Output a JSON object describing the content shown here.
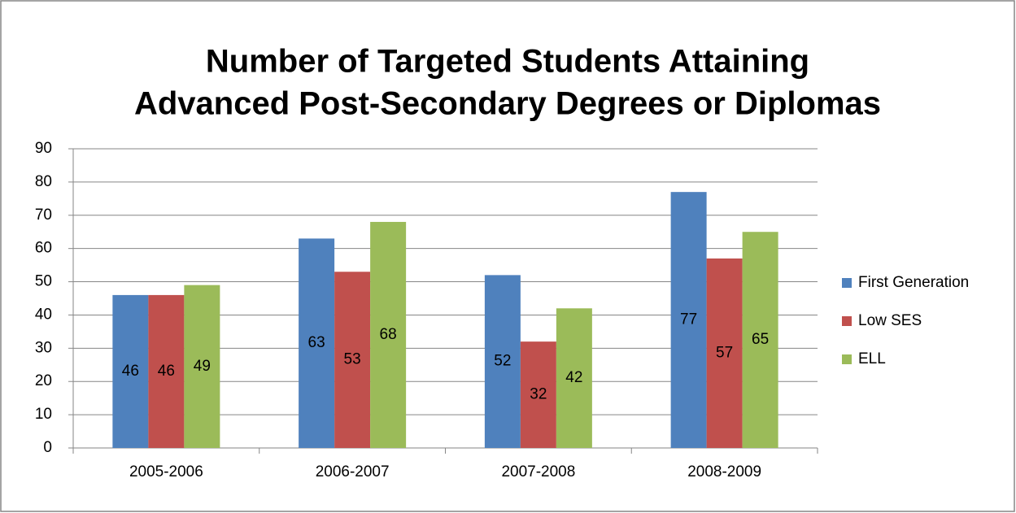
{
  "chart_data": {
    "type": "bar",
    "title": [
      "Number of Targeted Students Attaining",
      "Advanced Post-Secondary Degrees or Diplomas"
    ],
    "categories": [
      "2005-2006",
      "2006-2007",
      "2007-2008",
      "2008-2009"
    ],
    "series": [
      {
        "name": "First Generation",
        "color": "#4f81bd",
        "values": [
          46,
          63,
          52,
          77
        ]
      },
      {
        "name": "Low SES",
        "color": "#c0504d",
        "values": [
          46,
          53,
          32,
          57
        ]
      },
      {
        "name": "ELL",
        "color": "#9bbb59",
        "values": [
          49,
          68,
          42,
          65
        ]
      }
    ],
    "ylim": [
      0,
      90
    ],
    "yticks": [
      0,
      10,
      20,
      30,
      40,
      50,
      60,
      70,
      80,
      90
    ],
    "grid": true,
    "legend": "right"
  }
}
